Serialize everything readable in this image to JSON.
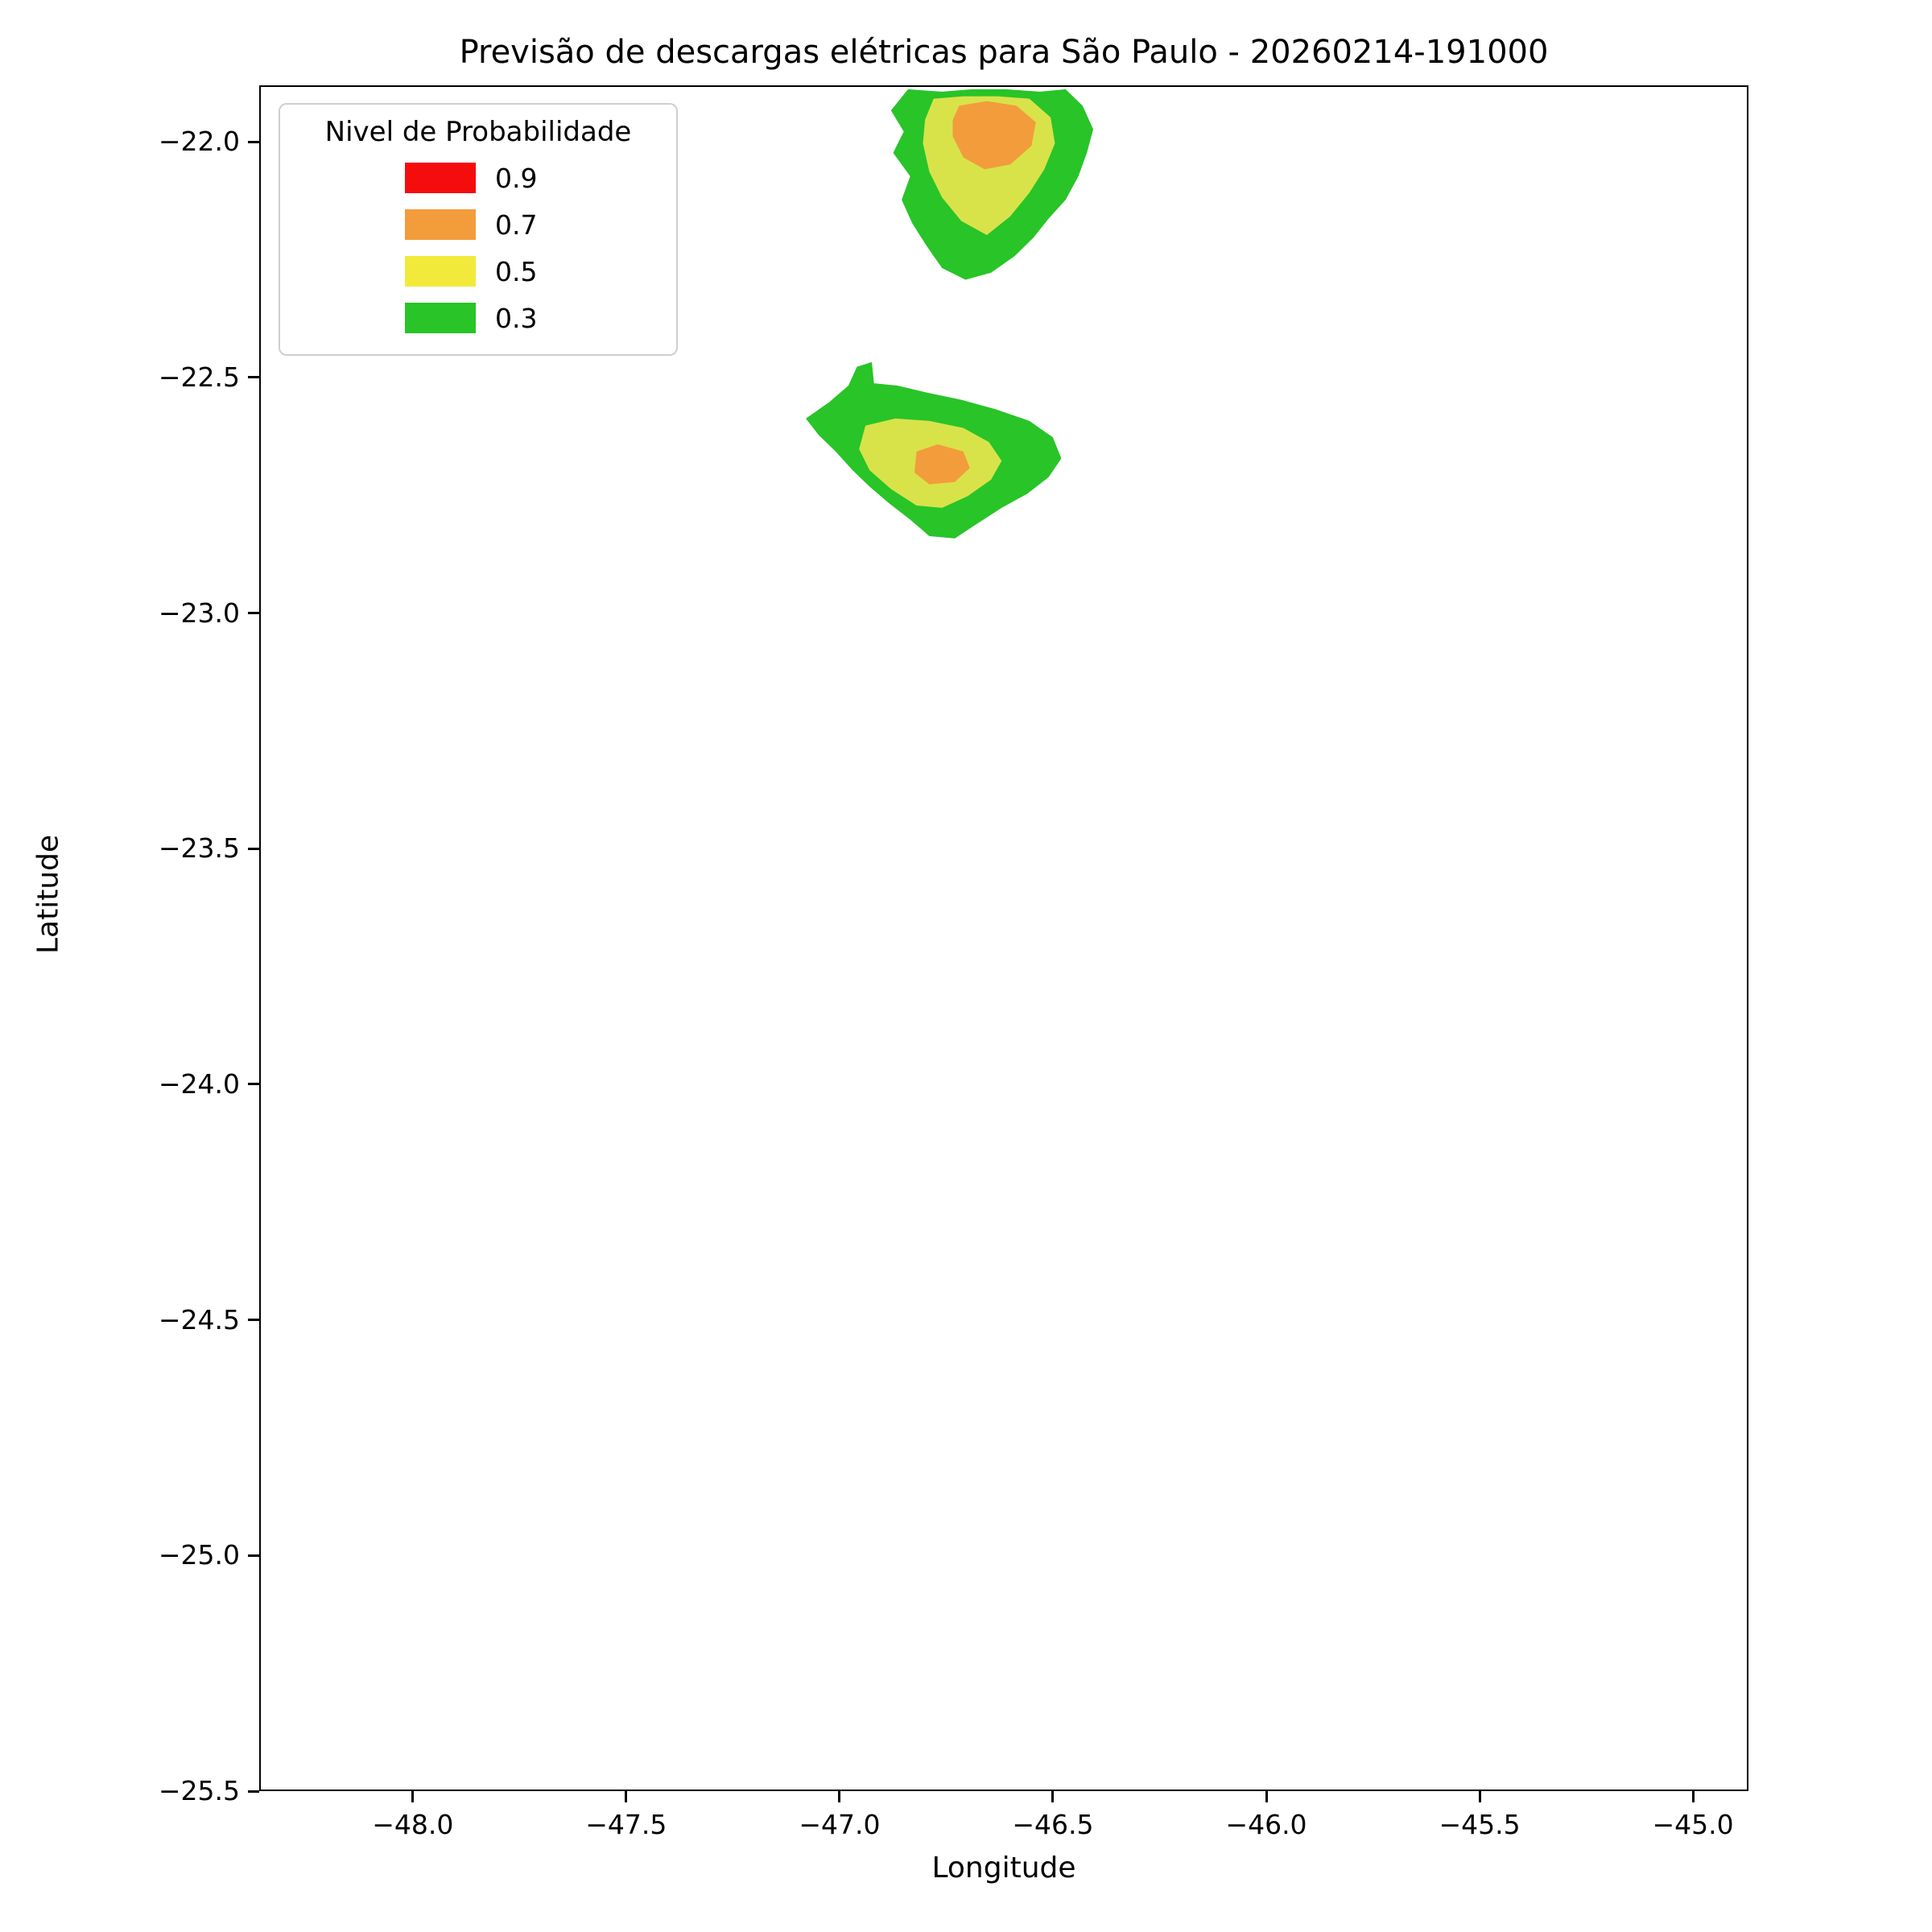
{
  "chart_data": {
    "type": "contour",
    "title": "Previsão de descargas elétricas para São Paulo - 20260214-191000",
    "xlabel": "Longitude",
    "ylabel": "Latitude",
    "xlim": [
      -48.36,
      -44.87
    ],
    "ylim": [
      -25.5,
      -21.88
    ],
    "grid": false,
    "xticks": [
      -48.0,
      -47.5,
      -47.0,
      -46.5,
      -46.0,
      -45.5,
      -45.0
    ],
    "xtick_labels": [
      "−48.0",
      "−47.5",
      "−47.0",
      "−46.5",
      "−46.0",
      "−45.5",
      "−45.0"
    ],
    "yticks": [
      -22.0,
      -22.5,
      -23.0,
      -23.5,
      -24.0,
      -24.5,
      -25.0,
      -25.5
    ],
    "ytick_labels": [
      "−22.0",
      "−22.5",
      "−23.0",
      "−23.5",
      "−24.0",
      "−24.5",
      "−25.0",
      "−25.5"
    ],
    "legend": {
      "title": "Nivel de Probabilidade",
      "position": "upper left",
      "entries": [
        {
          "label": "0.9",
          "color": "#f50d0d"
        },
        {
          "label": "0.7",
          "color": "#f39c3b"
        },
        {
          "label": "0.5",
          "color": "#f2ea3a"
        },
        {
          "label": "0.3",
          "color": "#28c428"
        }
      ]
    },
    "regions": [
      {
        "name": "cell-north-p03",
        "level": 0.3,
        "color": "#28c428",
        "points": [
          [
            -46.84,
            -21.885
          ],
          [
            -46.76,
            -21.89
          ],
          [
            -46.69,
            -21.885
          ],
          [
            -46.61,
            -21.885
          ],
          [
            -46.53,
            -21.89
          ],
          [
            -46.47,
            -21.885
          ],
          [
            -46.43,
            -21.92
          ],
          [
            -46.405,
            -21.97
          ],
          [
            -46.42,
            -22.02
          ],
          [
            -46.44,
            -22.07
          ],
          [
            -46.47,
            -22.12
          ],
          [
            -46.51,
            -22.16
          ],
          [
            -46.545,
            -22.2
          ],
          [
            -46.59,
            -22.24
          ],
          [
            -46.645,
            -22.275
          ],
          [
            -46.705,
            -22.29
          ],
          [
            -46.76,
            -22.265
          ],
          [
            -46.795,
            -22.22
          ],
          [
            -46.83,
            -22.17
          ],
          [
            -46.855,
            -22.12
          ],
          [
            -46.835,
            -22.07
          ],
          [
            -46.875,
            -22.02
          ],
          [
            -46.85,
            -21.975
          ],
          [
            -46.88,
            -21.93
          ]
        ]
      },
      {
        "name": "cell-north-p05",
        "level": 0.5,
        "color": "#d8e34a",
        "points": [
          [
            -46.78,
            -21.905
          ],
          [
            -46.71,
            -21.9
          ],
          [
            -46.63,
            -21.9
          ],
          [
            -46.555,
            -21.905
          ],
          [
            -46.505,
            -21.945
          ],
          [
            -46.495,
            -22.0
          ],
          [
            -46.52,
            -22.055
          ],
          [
            -46.555,
            -22.105
          ],
          [
            -46.6,
            -22.155
          ],
          [
            -46.655,
            -22.195
          ],
          [
            -46.715,
            -22.165
          ],
          [
            -46.76,
            -22.115
          ],
          [
            -46.79,
            -22.06
          ],
          [
            -46.805,
            -22.0
          ],
          [
            -46.8,
            -21.95
          ]
        ]
      },
      {
        "name": "cell-north-p07",
        "level": 0.7,
        "color": "#f39c3b",
        "points": [
          [
            -46.72,
            -21.92
          ],
          [
            -46.655,
            -21.91
          ],
          [
            -46.585,
            -21.92
          ],
          [
            -46.54,
            -21.955
          ],
          [
            -46.55,
            -22.005
          ],
          [
            -46.6,
            -22.045
          ],
          [
            -46.66,
            -22.055
          ],
          [
            -46.71,
            -22.03
          ],
          [
            -46.735,
            -21.985
          ],
          [
            -46.735,
            -21.95
          ]
        ]
      },
      {
        "name": "cell-south-p03",
        "level": 0.3,
        "color": "#28c428",
        "points": [
          [
            -47.08,
            -22.585
          ],
          [
            -47.025,
            -22.55
          ],
          [
            -46.98,
            -22.515
          ],
          [
            -46.96,
            -22.475
          ],
          [
            -46.925,
            -22.465
          ],
          [
            -46.92,
            -22.51
          ],
          [
            -46.865,
            -22.515
          ],
          [
            -46.795,
            -22.53
          ],
          [
            -46.715,
            -22.545
          ],
          [
            -46.635,
            -22.565
          ],
          [
            -46.555,
            -22.59
          ],
          [
            -46.5,
            -22.625
          ],
          [
            -46.48,
            -22.67
          ],
          [
            -46.51,
            -22.71
          ],
          [
            -46.56,
            -22.745
          ],
          [
            -46.62,
            -22.775
          ],
          [
            -46.68,
            -22.81
          ],
          [
            -46.73,
            -22.84
          ],
          [
            -46.79,
            -22.835
          ],
          [
            -46.835,
            -22.8
          ],
          [
            -46.885,
            -22.765
          ],
          [
            -46.93,
            -22.73
          ],
          [
            -46.97,
            -22.695
          ],
          [
            -47.01,
            -22.655
          ],
          [
            -47.05,
            -22.62
          ]
        ]
      },
      {
        "name": "cell-south-p05",
        "level": 0.5,
        "color": "#d8e34a",
        "points": [
          [
            -46.94,
            -22.6
          ],
          [
            -46.87,
            -22.585
          ],
          [
            -46.79,
            -22.59
          ],
          [
            -46.71,
            -22.605
          ],
          [
            -46.65,
            -22.635
          ],
          [
            -46.62,
            -22.675
          ],
          [
            -46.645,
            -22.715
          ],
          [
            -46.7,
            -22.75
          ],
          [
            -46.76,
            -22.775
          ],
          [
            -46.82,
            -22.77
          ],
          [
            -46.88,
            -22.735
          ],
          [
            -46.93,
            -22.695
          ],
          [
            -46.955,
            -22.65
          ]
        ]
      },
      {
        "name": "cell-south-p07",
        "level": 0.7,
        "color": "#f39c3b",
        "points": [
          [
            -46.82,
            -22.655
          ],
          [
            -46.77,
            -22.64
          ],
          [
            -46.71,
            -22.655
          ],
          [
            -46.695,
            -22.69
          ],
          [
            -46.73,
            -22.72
          ],
          [
            -46.79,
            -22.725
          ],
          [
            -46.825,
            -22.7
          ]
        ]
      }
    ]
  }
}
